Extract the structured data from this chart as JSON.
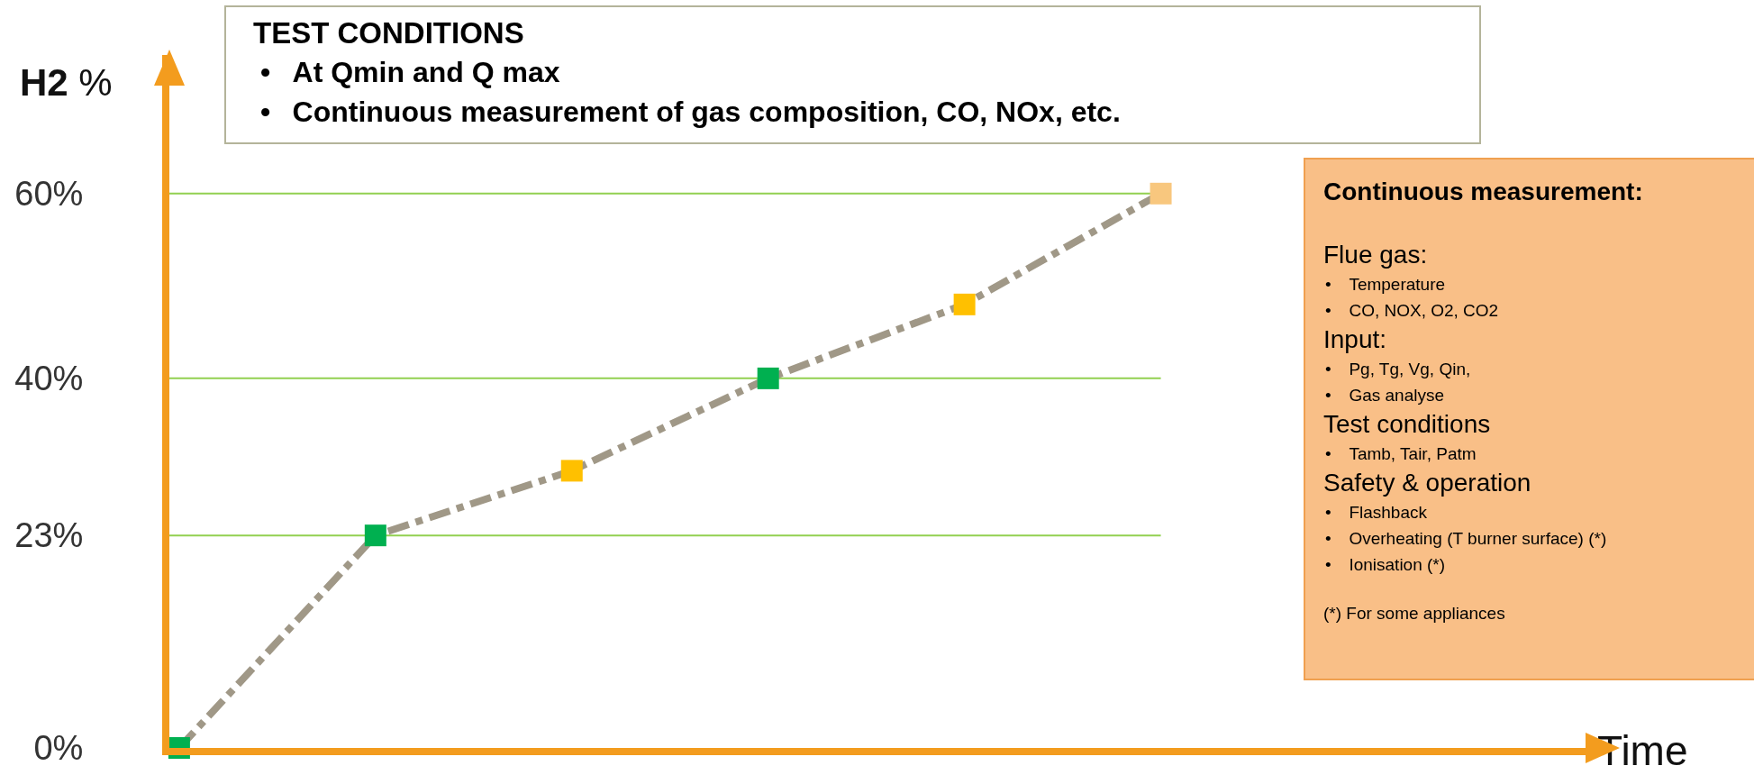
{
  "chart_data": {
    "type": "scatter",
    "ylabel": "H2 %",
    "categories": [
      null,
      null,
      null,
      null,
      null,
      null
    ],
    "series": [
      {
        "type": "line",
        "color": "#a09887",
        "line_style": "dashed",
        "marker": "none",
        "values": [
          0,
          23,
          30,
          40,
          48,
          60
        ]
      },
      {
        "marker": "square",
        "colors": [
          "#00b050",
          "#00b050",
          "#ffc000",
          "#00b050",
          "#ffc000",
          "#f8c77e"
        ],
        "values": [
          0,
          23,
          30,
          40,
          48,
          60
        ]
      }
    ],
    "ylim": [
      0,
      75
    ],
    "yticks": [
      {
        "value": 0,
        "label": "0%"
      },
      {
        "value": 23,
        "label": "23%"
      },
      {
        "value": 40,
        "label": "40%"
      },
      {
        "value": 60,
        "label": "60%"
      }
    ],
    "tick_labels": "y",
    "grid": false,
    "ref_lines": [
      {
        "axis": "y",
        "value": 23,
        "color": "#92d050"
      },
      {
        "axis": "y",
        "value": 40,
        "color": "#92d050"
      },
      {
        "axis": "y",
        "value": 60,
        "color": "#92d050"
      }
    ],
    "annotations": [
      "TEST CONDITIONS",
      "•\tAt Qmin and Q max",
      "•\tContinuous measurement of gas composition, CO, NOx, etc.",
      "Continuous measurement:",
      "Flue gas:",
      "•\tTemperature",
      "•\tCO, NOX, O2, CO2",
      "Input:",
      "•\tPg, Tg, Vg, Qin,",
      "•\tGas analyse",
      "Test conditions",
      "•\tTamb, Tair, Patm",
      "Safety & operation",
      "•\tFlashback",
      "•\tOverheating (T burner surface) (*)",
      "•\tIonisation (*)",
      "(*) For some appliances",
      "Time"
    ]
  }
}
